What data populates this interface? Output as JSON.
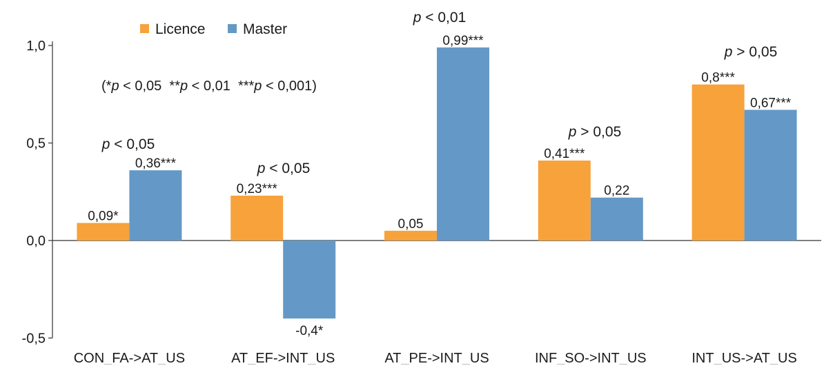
{
  "chart_data": {
    "type": "bar",
    "categories": [
      "CON_FA->AT_US",
      "AT_EF->INT_US",
      "AT_PE->INT_US",
      "INF_SO->INT_US",
      "INT_US->AT_US"
    ],
    "series": [
      {
        "name": "Licence",
        "color": "#f7a23b",
        "values": [
          0.09,
          0.23,
          0.05,
          0.41,
          0.8
        ],
        "labels": [
          "0,09*",
          "0,23***",
          "0,05",
          "0,41***",
          "0,8***"
        ]
      },
      {
        "name": "Master",
        "color": "#6499c7",
        "values": [
          0.36,
          -0.4,
          0.99,
          0.22,
          0.67
        ],
        "labels": [
          "0,36***",
          "-0,4*",
          "0,99***",
          "0,22",
          "0,67***"
        ]
      }
    ],
    "group_pvalues": [
      "p < 0,05",
      "p < 0,05",
      "p < 0,01",
      "p > 0,05",
      "p > 0,05"
    ],
    "significance_note": "(*p < 0,05  **p < 0,01  ***p < 0,001)",
    "yticks": [
      -0.5,
      0.0,
      0.5,
      1.0
    ],
    "ytick_labels": [
      "-0,5",
      "0,0",
      "0,5",
      "1,0"
    ],
    "ylim": [
      -0.5,
      1.0
    ],
    "title": "",
    "xlabel": "",
    "ylabel": "",
    "grid": false,
    "legend_position": "top-left"
  }
}
